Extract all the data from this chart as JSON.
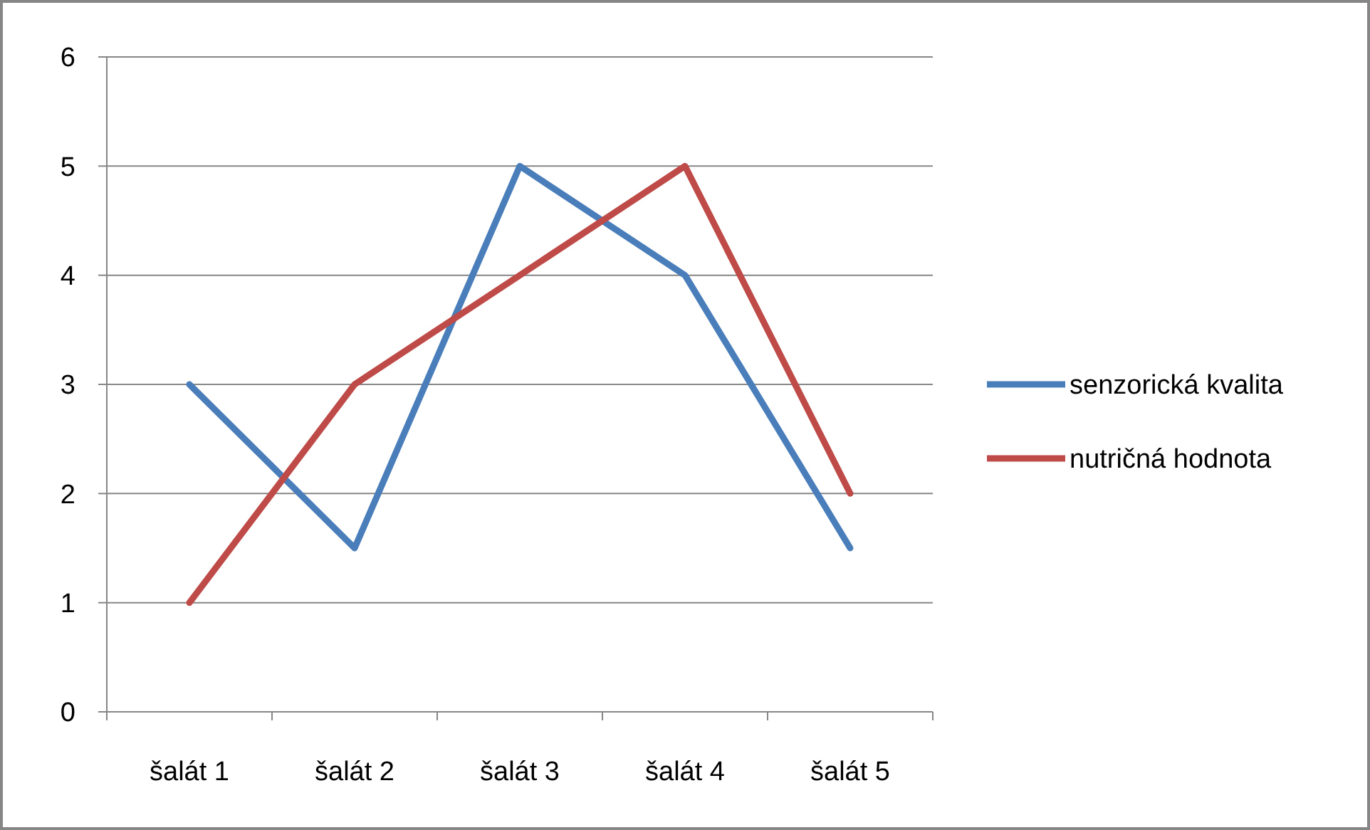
{
  "chart_data": {
    "type": "line",
    "categories": [
      "šalát 1",
      "šalát 2",
      "šalát 3",
      "šalát 4",
      "šalát 5"
    ],
    "series": [
      {
        "name": "senzorická kvalita",
        "color": "#4a7ebb",
        "values": [
          3,
          1.5,
          5,
          4,
          1.5
        ]
      },
      {
        "name": "nutričná hodnota",
        "color": "#be4b48",
        "values": [
          1,
          3,
          4,
          5,
          2
        ]
      }
    ],
    "ylim": [
      0,
      6
    ],
    "yticks": [
      0,
      1,
      2,
      3,
      4,
      5,
      6
    ],
    "grid": "y",
    "legend": "right",
    "marker": "none",
    "line_style": "solid"
  }
}
